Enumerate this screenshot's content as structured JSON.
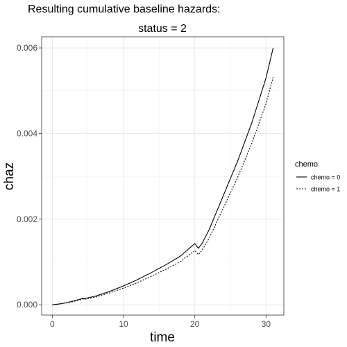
{
  "title": "Resulting cumulative baseline hazards:",
  "facet_label": "status = 2",
  "chart_data": {
    "type": "line",
    "xlabel": "time",
    "ylabel": "chaz",
    "xlim": [
      -1.5,
      32.5
    ],
    "ylim": [
      -0.00024,
      0.00626
    ],
    "x_ticks": [
      0,
      10,
      20,
      30
    ],
    "x_tick_labels": [
      "0",
      "10",
      "20",
      "30"
    ],
    "y_ticks": [
      0,
      0.002,
      0.004,
      0.006
    ],
    "y_tick_labels": [
      "0.000",
      "0.002",
      "0.004",
      "0.006"
    ],
    "grid": true,
    "legend": {
      "title": "chemo",
      "position": "right",
      "entries": [
        "chemo = 0",
        "chemo = 1"
      ]
    },
    "series": [
      {
        "name": "chemo = 0",
        "line_style": "solid",
        "color": "#000000",
        "x": [
          0,
          1,
          2,
          3,
          4,
          4.3,
          4.4,
          6,
          8,
          10,
          12,
          14,
          16,
          18,
          20,
          20.5,
          21,
          22,
          24,
          26,
          28,
          30,
          31
        ],
        "y": [
          0,
          2e-05,
          5e-05,
          9e-05,
          0.000135,
          0.000155,
          0.00014,
          0.0002,
          0.00031,
          0.00044,
          0.00059,
          0.00076,
          0.00094,
          0.00114,
          0.00143,
          0.00132,
          0.00143,
          0.00175,
          0.00255,
          0.00335,
          0.00425,
          0.0053,
          0.006
        ]
      },
      {
        "name": "chemo = 1",
        "line_style": "dashed",
        "color": "#000000",
        "x": [
          0,
          1,
          2,
          3,
          4,
          4.3,
          4.4,
          6,
          8,
          10,
          12,
          14,
          16,
          18,
          20,
          20.5,
          21,
          22,
          24,
          26,
          28,
          30,
          31
        ],
        "y": [
          0,
          1.8e-05,
          4.5e-05,
          8e-05,
          0.00012,
          0.000138,
          0.000125,
          0.000178,
          0.000276,
          0.00039,
          0.000523,
          0.000674,
          0.000834,
          0.00101,
          0.00127,
          0.00117,
          0.00127,
          0.00155,
          0.00226,
          0.00297,
          0.00377,
          0.0047,
          0.00532
        ]
      }
    ]
  }
}
